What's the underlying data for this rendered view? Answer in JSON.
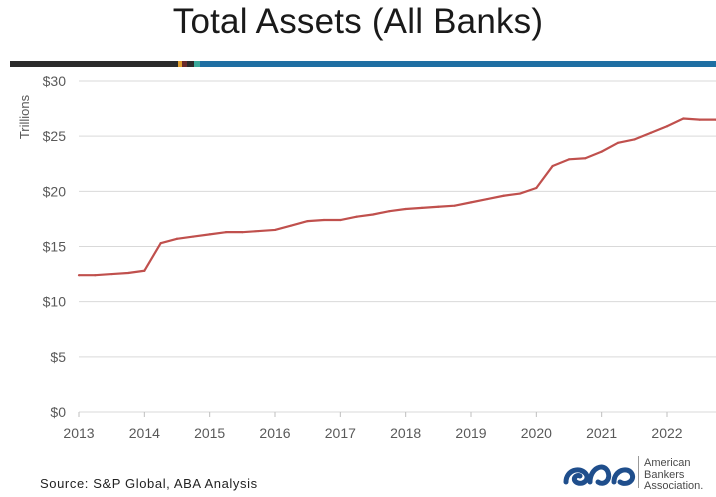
{
  "title": "Total Assets (All Banks)",
  "source": "Source: S&P Global, ABA Analysis",
  "logo": {
    "line1": "American",
    "line2": "Bankers",
    "line3": "Association."
  },
  "colors": {
    "line": "#c0504d",
    "grid": "#d9d9d9",
    "bar_dark": "#2b2b2b",
    "bar_blue": "#1f6fa3",
    "logo_blue": "#1f4e8c"
  },
  "chart_data": {
    "type": "line",
    "title": "Total Assets (All Banks)",
    "xlabel": "",
    "ylabel": "Trillions",
    "xlim": [
      2013,
      2022.75
    ],
    "ylim": [
      0,
      30
    ],
    "x_ticks": [
      2013,
      2014,
      2015,
      2016,
      2017,
      2018,
      2019,
      2020,
      2021,
      2022
    ],
    "x_tick_labels": [
      "2013",
      "2014",
      "2015",
      "2016",
      "2017",
      "2018",
      "2019",
      "2020",
      "2021",
      "2022"
    ],
    "y_ticks": [
      0,
      5,
      10,
      15,
      20,
      25,
      30
    ],
    "y_tick_labels": [
      "$0",
      "$5",
      "$10",
      "$15",
      "$20",
      "$25",
      "$30"
    ],
    "grid": "horizontal",
    "series": [
      {
        "x": [
          2013.0,
          2013.25,
          2013.5,
          2013.75,
          2014.0,
          2014.25,
          2014.5,
          2014.75,
          2015.0,
          2015.25,
          2015.5,
          2015.75,
          2016.0,
          2016.25,
          2016.5,
          2016.75,
          2017.0,
          2017.25,
          2017.5,
          2017.75,
          2018.0,
          2018.25,
          2018.5,
          2018.75,
          2019.0,
          2019.25,
          2019.5,
          2019.75,
          2020.0,
          2020.25,
          2020.5,
          2020.75,
          2021.0,
          2021.25,
          2021.5,
          2021.75,
          2022.0,
          2022.25,
          2022.5,
          2022.75
        ],
        "values": [
          12.4,
          12.4,
          12.5,
          12.6,
          12.8,
          15.3,
          15.7,
          15.9,
          16.1,
          16.3,
          16.3,
          16.4,
          16.5,
          16.9,
          17.3,
          17.4,
          17.4,
          17.7,
          17.9,
          18.2,
          18.4,
          18.5,
          18.6,
          18.7,
          19.0,
          19.3,
          19.6,
          19.8,
          20.3,
          22.3,
          22.9,
          23.0,
          23.6,
          24.4,
          24.7,
          25.3,
          25.9,
          26.6,
          26.5,
          26.5
        ]
      }
    ]
  }
}
